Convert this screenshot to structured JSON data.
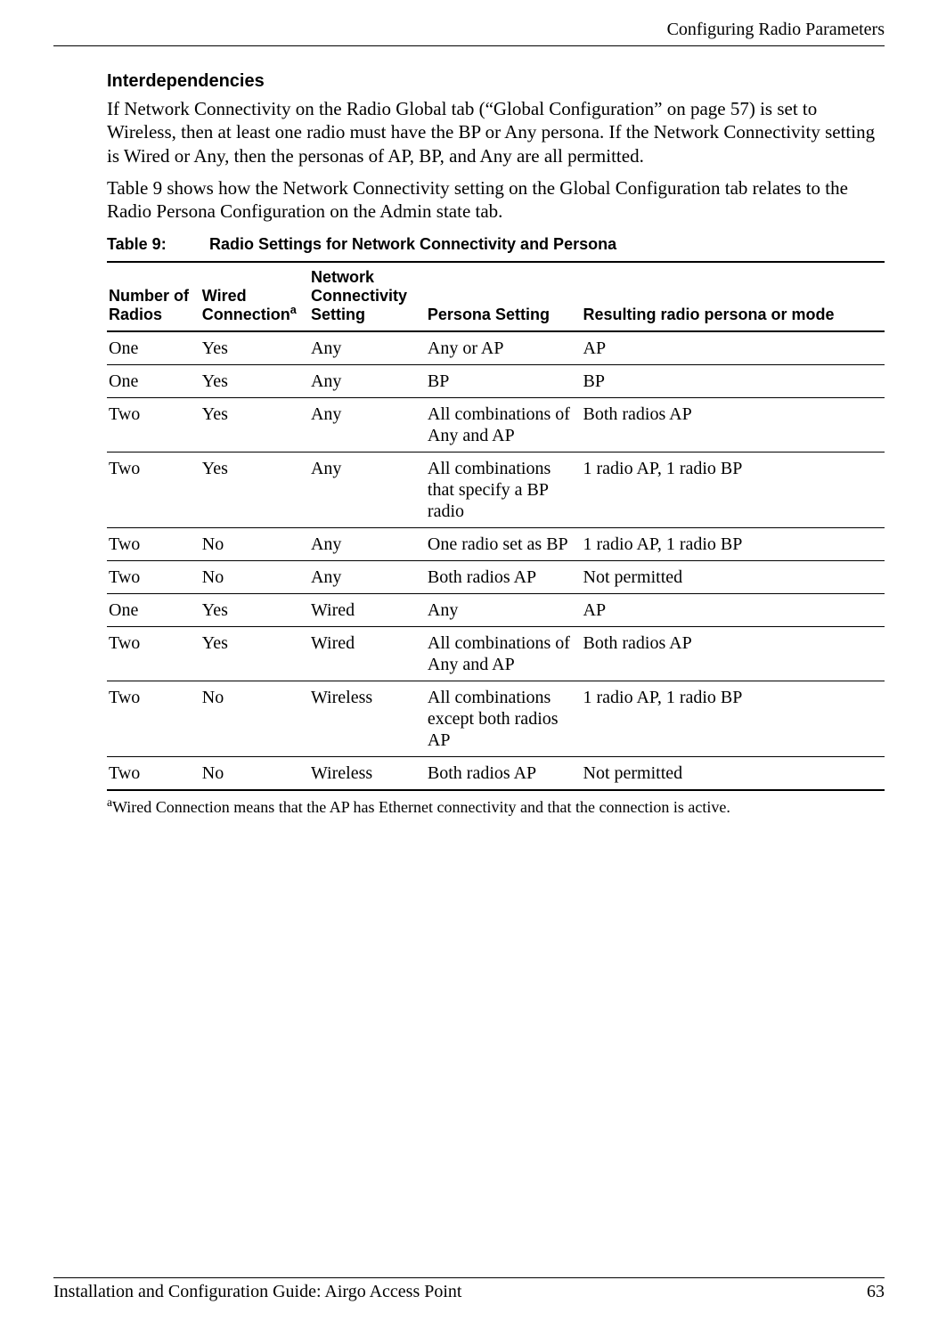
{
  "header": {
    "running_head": "Configuring Radio Parameters"
  },
  "section": {
    "heading": "Interdependencies",
    "para1": "If Network Connectivity on the Radio Global tab (“Global Configuration” on page 57) is set to Wireless, then at least one radio must have the BP or Any persona. If the Network Connectivity setting is Wired or Any, then the personas of AP, BP, and Any are all permitted.",
    "para2": "Table 9 shows how the Network Connectivity setting on the Global Configuration tab relates to the Radio Persona Configuration on the Admin state tab."
  },
  "table": {
    "caption_label": "Table 9:",
    "caption_title": "Radio Settings for Network Connectivity and Persona",
    "columns": {
      "c1": "Number of Radios",
      "c2_pre": "Wired Connection",
      "c2_sup": "a",
      "c3": "Network Connectivity Setting",
      "c4": "Persona Setting",
      "c5": "Resulting radio persona or mode"
    },
    "rows": [
      {
        "c1": "One",
        "c2": "Yes",
        "c3": "Any",
        "c4": "Any or AP",
        "c5": "AP"
      },
      {
        "c1": "One",
        "c2": "Yes",
        "c3": "Any",
        "c4": "BP",
        "c5": "BP"
      },
      {
        "c1": "Two",
        "c2": "Yes",
        "c3": "Any",
        "c4": "All combinations of Any and AP",
        "c5": "Both radios AP"
      },
      {
        "c1": "Two",
        "c2": "Yes",
        "c3": "Any",
        "c4": "All combinations that specify a BP radio",
        "c5": "1 radio AP, 1 radio BP"
      },
      {
        "c1": "Two",
        "c2": "No",
        "c3": "Any",
        "c4": "One radio set as BP",
        "c5": "1 radio AP, 1 radio BP"
      },
      {
        "c1": "Two",
        "c2": "No",
        "c3": "Any",
        "c4": "Both radios AP",
        "c5": "Not permitted"
      },
      {
        "c1": "One",
        "c2": "Yes",
        "c3": "Wired",
        "c4": "Any",
        "c5": "AP"
      },
      {
        "c1": "Two",
        "c2": "Yes",
        "c3": "Wired",
        "c4": "All combinations of Any and AP",
        "c5": "Both radios AP"
      },
      {
        "c1": "Two",
        "c2": "No",
        "c3": "Wireless",
        "c4": "All combinations except both radios AP",
        "c5": "1 radio AP, 1 radio BP"
      },
      {
        "c1": "Two",
        "c2": "No",
        "c3": "Wireless",
        "c4": "Both radios AP",
        "c5": "Not permitted"
      }
    ],
    "footnote_sup": "a",
    "footnote_text": "Wired Connection means that the AP has Ethernet connectivity and that the connection is active."
  },
  "footer": {
    "guide": "Installation and Configuration Guide: Airgo Access Point",
    "page_number": "63"
  }
}
